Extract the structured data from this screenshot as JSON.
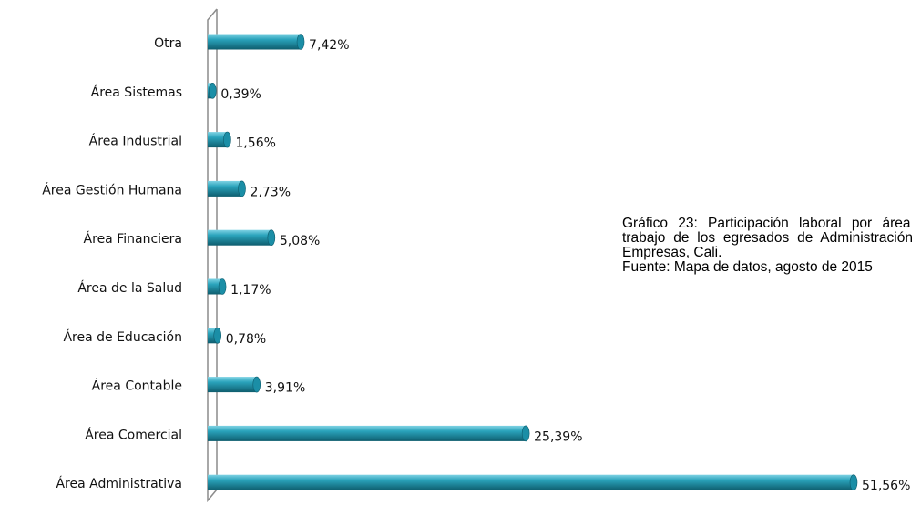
{
  "chart_data": {
    "type": "bar",
    "orientation": "horizontal",
    "categories": [
      "Otra",
      "Área Sistemas",
      "Área Industrial",
      "Área Gestión Humana",
      "Área Financiera",
      "Área de la Salud",
      "Área de Educación",
      "Área Contable",
      "Área Comercial",
      "Área Administrativa"
    ],
    "values": [
      7.42,
      0.39,
      1.56,
      2.73,
      5.08,
      1.17,
      0.78,
      3.91,
      25.39,
      51.56
    ],
    "value_labels": [
      "7,42%",
      "0,39%",
      "1,56%",
      "2,73%",
      "5,08%",
      "1,17%",
      "0,78%",
      "3,91%",
      "25,39%",
      "51,56%"
    ],
    "color": "#1b8ea6"
  },
  "caption": {
    "title": "Gráfico 23: Participación laboral por área de trabajo de los egresados de Administración de Empresas, Cali.",
    "source": "Fuente: Mapa de datos, agosto de 2015"
  }
}
